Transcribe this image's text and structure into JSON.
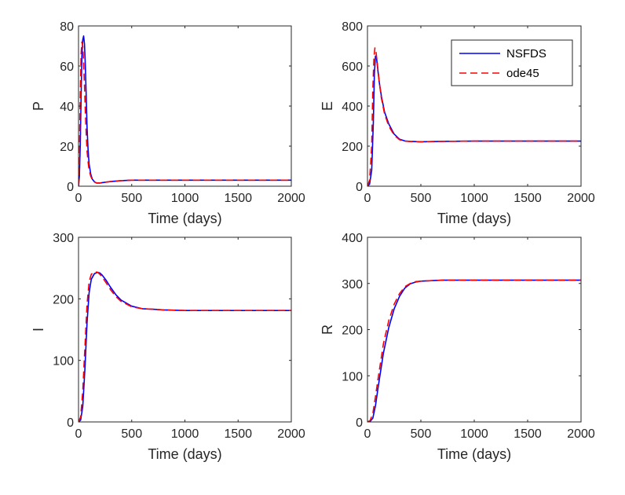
{
  "chart_data": [
    {
      "type": "line",
      "ylabel": "P",
      "xlabel": "Time (days)",
      "xlim": [
        0,
        2000
      ],
      "ylim": [
        0,
        80
      ],
      "xticks": [
        0,
        500,
        1000,
        1500,
        2000
      ],
      "yticks": [
        0,
        20,
        40,
        60,
        80
      ],
      "grid": false,
      "series": [
        {
          "name": "NSFDS",
          "color": "#0000ff",
          "dash": "solid",
          "x": [
            0,
            8,
            16,
            24,
            32,
            40,
            48,
            56,
            64,
            72,
            80,
            90,
            100,
            115,
            130,
            150,
            170,
            200,
            250,
            300,
            400,
            500,
            700,
            1000,
            1500,
            2000
          ],
          "y": [
            0,
            5,
            20,
            45,
            65,
            73,
            75,
            71,
            60,
            45,
            30,
            18,
            11,
            6,
            3.5,
            2.2,
            1.6,
            1.6,
            2.0,
            2.3,
            2.8,
            3.0,
            3.0,
            3.0,
            3.0,
            3.0
          ]
        },
        {
          "name": "ode45",
          "color": "#ff0000",
          "dash": "dashed",
          "x": [
            0,
            8,
            16,
            24,
            32,
            40,
            48,
            56,
            64,
            72,
            80,
            90,
            100,
            115,
            130,
            150,
            170,
            200,
            250,
            300,
            400,
            500,
            700,
            1000,
            1500,
            2000
          ],
          "y": [
            0,
            15,
            45,
            66,
            72,
            70,
            62,
            50,
            37,
            26,
            18,
            12,
            8,
            5,
            3.2,
            2.1,
            1.6,
            1.6,
            2.0,
            2.3,
            2.8,
            3.0,
            3.0,
            3.0,
            3.0,
            3.0
          ]
        }
      ]
    },
    {
      "type": "line",
      "ylabel": "E",
      "xlabel": "Time (days)",
      "xlim": [
        0,
        2000
      ],
      "ylim": [
        0,
        800
      ],
      "xticks": [
        0,
        500,
        1000,
        1500,
        2000
      ],
      "yticks": [
        0,
        200,
        400,
        600,
        800
      ],
      "grid": false,
      "legend": {
        "position": "top-right",
        "entries": [
          "NSFDS",
          "ode45"
        ]
      },
      "series": [
        {
          "name": "NSFDS",
          "color": "#0000ff",
          "dash": "solid",
          "x": [
            0,
            20,
            40,
            55,
            65,
            75,
            85,
            95,
            110,
            130,
            160,
            200,
            250,
            300,
            350,
            400,
            500,
            700,
            1000,
            1500,
            2000
          ],
          "y": [
            0,
            10,
            80,
            320,
            560,
            650,
            640,
            590,
            520,
            450,
            370,
            310,
            260,
            235,
            226,
            224,
            222,
            224,
            225,
            225,
            225
          ]
        },
        {
          "name": "ode45",
          "color": "#ff0000",
          "dash": "dashed",
          "x": [
            0,
            20,
            40,
            50,
            60,
            70,
            80,
            95,
            110,
            130,
            160,
            200,
            250,
            300,
            350,
            400,
            500,
            700,
            1000,
            1500,
            2000
          ],
          "y": [
            0,
            30,
            200,
            480,
            640,
            690,
            670,
            600,
            520,
            440,
            360,
            300,
            255,
            232,
            225,
            223,
            222,
            224,
            225,
            225,
            225
          ]
        }
      ]
    },
    {
      "type": "line",
      "ylabel": "I",
      "xlabel": "Time (days)",
      "xlim": [
        0,
        2000
      ],
      "ylim": [
        0,
        300
      ],
      "xticks": [
        0,
        500,
        1000,
        1500,
        2000
      ],
      "yticks": [
        0,
        100,
        200,
        300
      ],
      "grid": false,
      "series": [
        {
          "name": "NSFDS",
          "color": "#0000ff",
          "dash": "solid",
          "x": [
            0,
            20,
            40,
            60,
            80,
            100,
            120,
            150,
            180,
            200,
            220,
            260,
            300,
            350,
            400,
            500,
            600,
            700,
            800,
            1000,
            1500,
            2000
          ],
          "y": [
            0,
            3,
            25,
            85,
            160,
            210,
            232,
            241,
            243,
            242,
            239,
            230,
            219,
            207,
            198,
            188,
            184,
            183,
            182,
            181,
            181,
            181
          ]
        },
        {
          "name": "ode45",
          "color": "#ff0000",
          "dash": "dashed",
          "x": [
            0,
            20,
            40,
            60,
            80,
            100,
            120,
            150,
            180,
            200,
            220,
            260,
            300,
            350,
            400,
            500,
            600,
            700,
            800,
            1000,
            1500,
            2000
          ],
          "y": [
            0,
            8,
            50,
            120,
            190,
            228,
            240,
            244,
            243,
            240,
            236,
            226,
            215,
            204,
            196,
            187,
            184,
            183,
            182,
            181,
            181,
            181
          ]
        }
      ]
    },
    {
      "type": "line",
      "ylabel": "R",
      "xlabel": "Time (days)",
      "xlim": [
        0,
        2000
      ],
      "ylim": [
        0,
        400
      ],
      "xticks": [
        0,
        500,
        1000,
        1500,
        2000
      ],
      "yticks": [
        0,
        100,
        200,
        300,
        400
      ],
      "grid": false,
      "series": [
        {
          "name": "NSFDS",
          "color": "#0000ff",
          "dash": "solid",
          "x": [
            0,
            25,
            50,
            75,
            100,
            150,
            200,
            250,
            300,
            350,
            400,
            450,
            500,
            600,
            700,
            800,
            1000,
            1500,
            2000
          ],
          "y": [
            0,
            1,
            8,
            35,
            75,
            150,
            205,
            245,
            272,
            290,
            299,
            303,
            305,
            306,
            307,
            307,
            307,
            307,
            307
          ]
        },
        {
          "name": "ode45",
          "color": "#ff0000",
          "dash": "dashed",
          "x": [
            0,
            25,
            50,
            75,
            100,
            150,
            200,
            250,
            300,
            350,
            400,
            450,
            500,
            600,
            700,
            800,
            1000,
            1500,
            2000
          ],
          "y": [
            0,
            3,
            18,
            55,
            95,
            170,
            220,
            255,
            278,
            293,
            300,
            304,
            305,
            306,
            307,
            307,
            307,
            307,
            307
          ]
        }
      ]
    }
  ]
}
